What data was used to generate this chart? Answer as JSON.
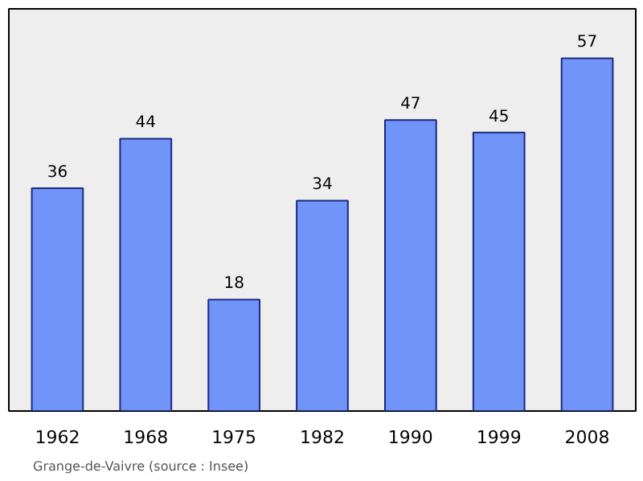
{
  "chart_data": {
    "type": "bar",
    "categories": [
      "1962",
      "1968",
      "1975",
      "1982",
      "1990",
      "1999",
      "2008"
    ],
    "values": [
      36,
      44,
      18,
      34,
      47,
      45,
      57
    ],
    "color": "#7094f8",
    "data_labels": true,
    "grid": false,
    "annotations": [
      "Grange-de-Vaivre    (source : Insee)"
    ]
  }
}
